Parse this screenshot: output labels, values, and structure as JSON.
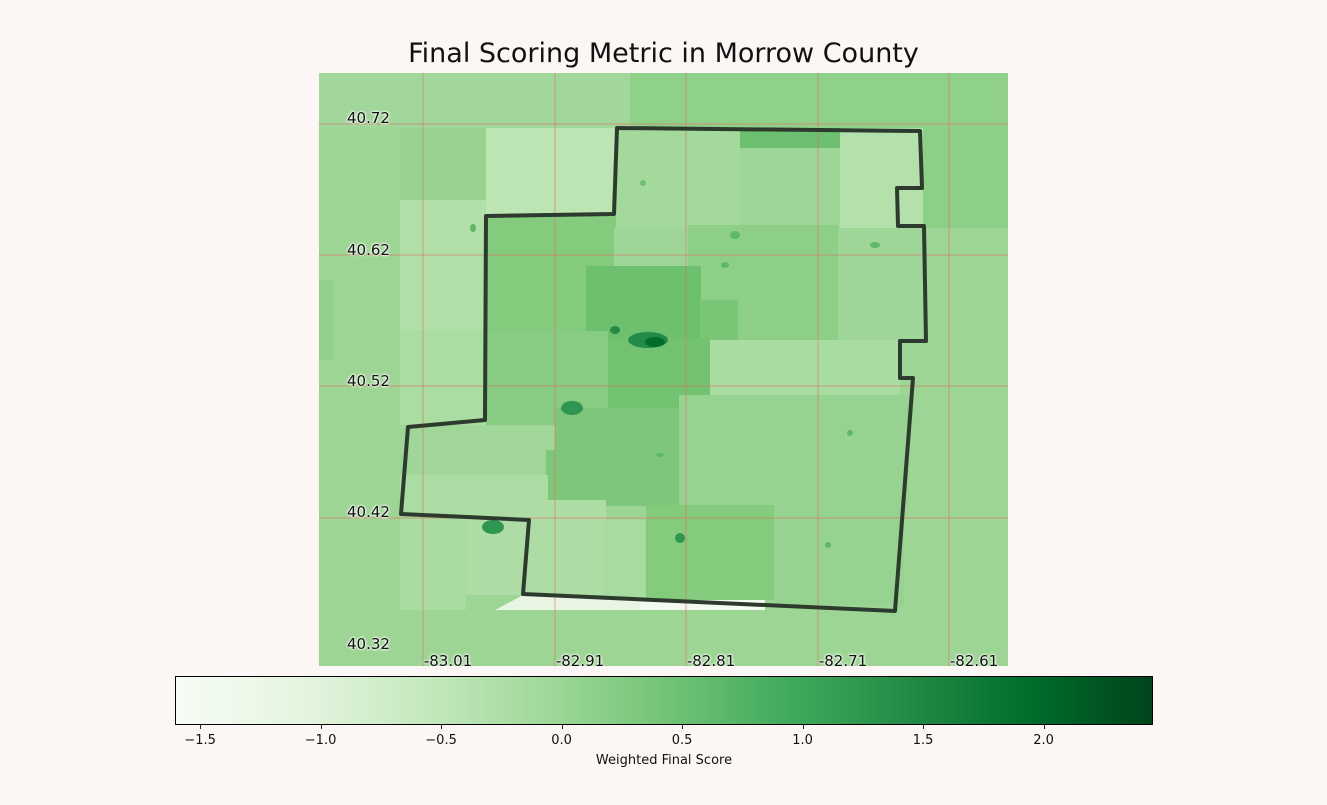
{
  "title": "Final Scoring Metric in Morrow County",
  "map": {
    "region": "Morrow County",
    "lat_labels": [
      "40.72",
      "40.62",
      "40.52",
      "40.42",
      "40.32"
    ],
    "lon_labels": [
      "-83.01",
      "-82.91",
      "-82.81",
      "-82.71",
      "-82.61"
    ],
    "gridline_color": "#e07060",
    "boundary_color": "#2d3a2e",
    "colormap": "Greens"
  },
  "colorbar": {
    "label": "Weighted Final Score",
    "min": -1.6,
    "max": 2.45,
    "tick_labels": [
      "−1.5",
      "−1.0",
      "−0.5",
      "0.0",
      "0.5",
      "1.0",
      "1.5",
      "2.0"
    ],
    "tick_values": [
      -1.5,
      -1.0,
      -0.5,
      0.0,
      0.5,
      1.0,
      1.5,
      2.0
    ],
    "colors": [
      "#f7fcf5",
      "#e5f5e0",
      "#c7e9c0",
      "#a1d99b",
      "#74c476",
      "#41ab5d",
      "#238b45",
      "#006d2c",
      "#00441b"
    ]
  }
}
